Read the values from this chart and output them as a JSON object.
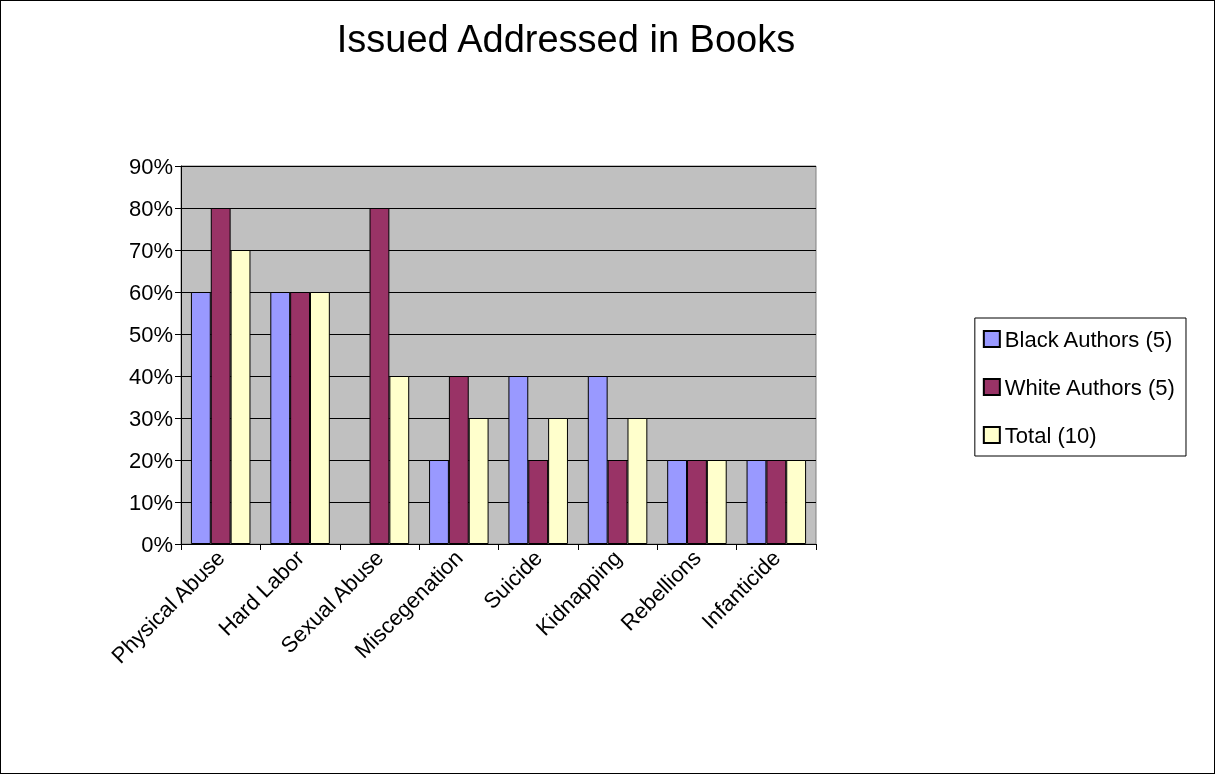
{
  "chart_data": {
    "type": "bar",
    "title": "Issued Addressed in Books",
    "categories": [
      "Physical Abuse",
      "Hard Labor",
      "Sexual Abuse",
      "Miscegenation",
      "Suicide",
      "Kidnapping",
      "Rebellions",
      "Infanticide"
    ],
    "series": [
      {
        "name": "Black Authors (5)",
        "color": "#9999ff",
        "values": [
          60,
          60,
          0,
          20,
          40,
          40,
          20,
          20
        ]
      },
      {
        "name": "White Authors (5)",
        "color": "#993366",
        "values": [
          80,
          60,
          80,
          40,
          20,
          20,
          20,
          20
        ]
      },
      {
        "name": "Total (10)",
        "color": "#ffffcc",
        "values": [
          70,
          60,
          40,
          30,
          30,
          30,
          20,
          20
        ]
      }
    ],
    "ylim": [
      0,
      90
    ],
    "yticks": [
      {
        "value": 0,
        "label": "0%"
      },
      {
        "value": 10,
        "label": "10%"
      },
      {
        "value": 20,
        "label": "20%"
      },
      {
        "value": 30,
        "label": "30%"
      },
      {
        "value": 40,
        "label": "40%"
      },
      {
        "value": 50,
        "label": "50%"
      },
      {
        "value": 60,
        "label": "60%"
      },
      {
        "value": 70,
        "label": "70%"
      },
      {
        "value": 80,
        "label": "80%"
      },
      {
        "value": 90,
        "label": "90%"
      }
    ],
    "grid": "y",
    "legend": "right"
  }
}
